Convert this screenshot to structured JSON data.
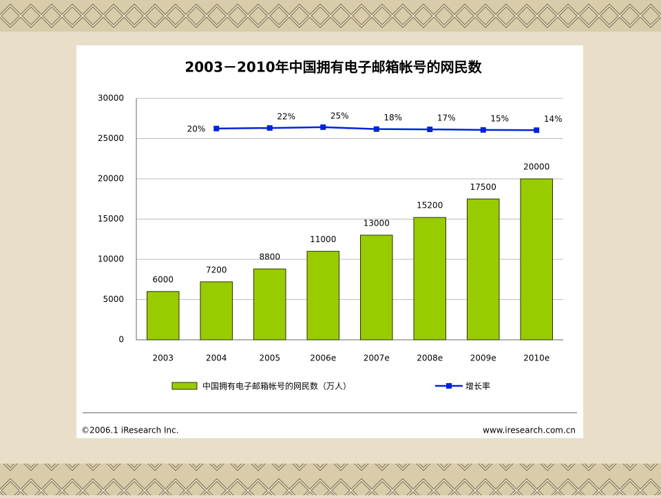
{
  "chart_data": {
    "type": "bar",
    "title": "2003－2010年中国拥有电子邮箱帐号的网民数",
    "categories": [
      "2003",
      "2004",
      "2005",
      "2006e",
      "2007e",
      "2008e",
      "2009e",
      "2010e"
    ],
    "series": [
      {
        "name": "中国拥有电子邮箱帐号的网民数（万人）",
        "type": "bar",
        "color": "#99cc00",
        "values": [
          6000,
          7200,
          8800,
          11000,
          13000,
          15200,
          17500,
          20000
        ]
      },
      {
        "name": "增长率",
        "type": "line",
        "axis": "y2",
        "color": "#0022dd",
        "values": [
          null,
          20,
          22,
          25,
          18,
          17,
          15,
          14
        ],
        "value_labels": [
          null,
          "20%",
          "22%",
          "25%",
          "18%",
          "17%",
          "15%",
          "14%"
        ]
      }
    ],
    "ylim": [
      0,
      30000
    ],
    "yticks": [
      0,
      5000,
      10000,
      15000,
      20000,
      25000,
      30000
    ],
    "y2lim": [
      -750,
      130
    ],
    "grid": true,
    "legend": "bottom"
  },
  "footer": {
    "copyright": "©2006.1 iResearch Inc.",
    "website": "www.iresearch.com.cn"
  }
}
